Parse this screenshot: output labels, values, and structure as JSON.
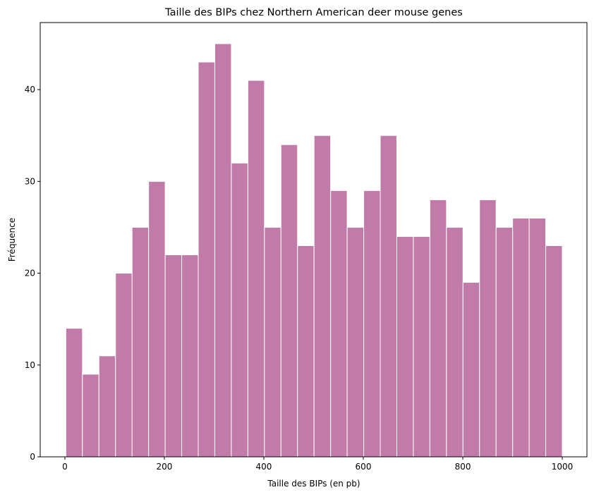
{
  "chart_data": {
    "type": "histogram",
    "title": "Taille des BIPs chez Northern American deer mouse genes",
    "xlabel": "Taille des BIPs (en pb)",
    "ylabel": "Fréquence",
    "bins": [
      2,
      35.27,
      68.53,
      101.8,
      135.07,
      168.33,
      201.6,
      234.87,
      268.13,
      301.4,
      334.67,
      367.93,
      401.2,
      434.47,
      467.73,
      501,
      534.27,
      567.53,
      600.8,
      634.07,
      667.33,
      700.6,
      733.87,
      767.13,
      800.4,
      833.67,
      866.93,
      900.2,
      933.47,
      966.73,
      1000
    ],
    "values": [
      14,
      9,
      11,
      20,
      25,
      30,
      22,
      22,
      43,
      45,
      32,
      41,
      25,
      34,
      23,
      35,
      29,
      25,
      29,
      35,
      24,
      24,
      28,
      25,
      19,
      28,
      25,
      26,
      26,
      23
    ],
    "color": "#c07ba8",
    "edgecolor": "#ffffff",
    "xlim": [
      -49.6,
      1049.6
    ],
    "xticks": [
      0,
      200,
      400,
      600,
      800,
      1000
    ],
    "ylim": [
      0,
      47.3
    ],
    "yticks": [
      0,
      10,
      20,
      30,
      40
    ]
  }
}
